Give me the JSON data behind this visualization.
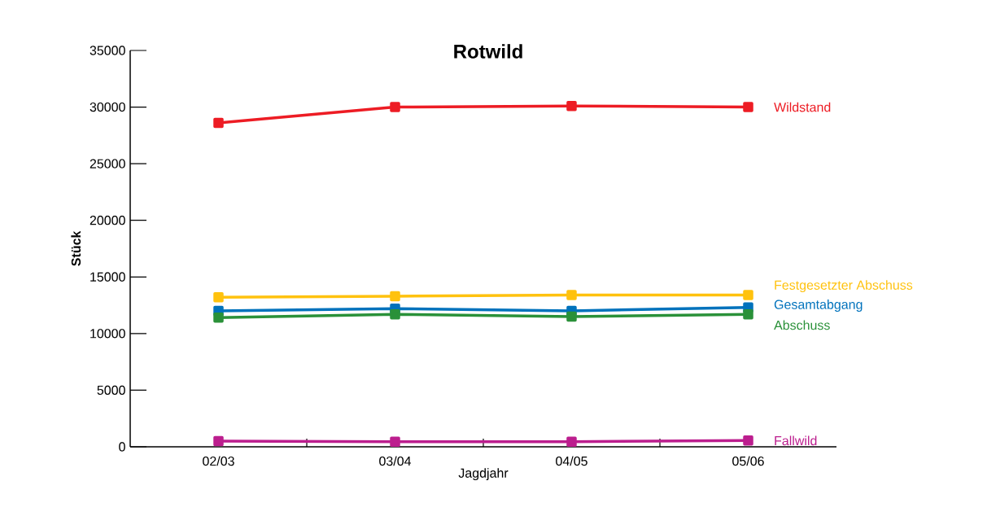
{
  "chart_data": {
    "type": "line",
    "title": "Rotwild",
    "xlabel": "Jagdjahr",
    "ylabel": "Stück",
    "categories": [
      "02/03",
      "03/04",
      "04/05",
      "05/06"
    ],
    "ylim": [
      0,
      35000
    ],
    "yticks": [
      0,
      5000,
      10000,
      15000,
      20000,
      25000,
      30000,
      35000
    ],
    "marker": "square",
    "line_style": "solid",
    "grid": false,
    "series": [
      {
        "name": "Wildstand",
        "color": "#ed1c24",
        "values": [
          28600,
          30000,
          30100,
          30000
        ]
      },
      {
        "name": "Festgesetzter Abschuss",
        "color": "#ffc20e",
        "values": [
          13200,
          13300,
          13400,
          13400
        ]
      },
      {
        "name": "Gesamtabgang",
        "color": "#0072bc",
        "values": [
          12000,
          12200,
          12000,
          12300
        ]
      },
      {
        "name": "Abschuss",
        "color": "#2a9139",
        "values": [
          11400,
          11700,
          11500,
          11700
        ]
      },
      {
        "name": "Fallwild",
        "color": "#bc1e8e",
        "values": [
          500,
          450,
          450,
          550
        ]
      }
    ]
  }
}
